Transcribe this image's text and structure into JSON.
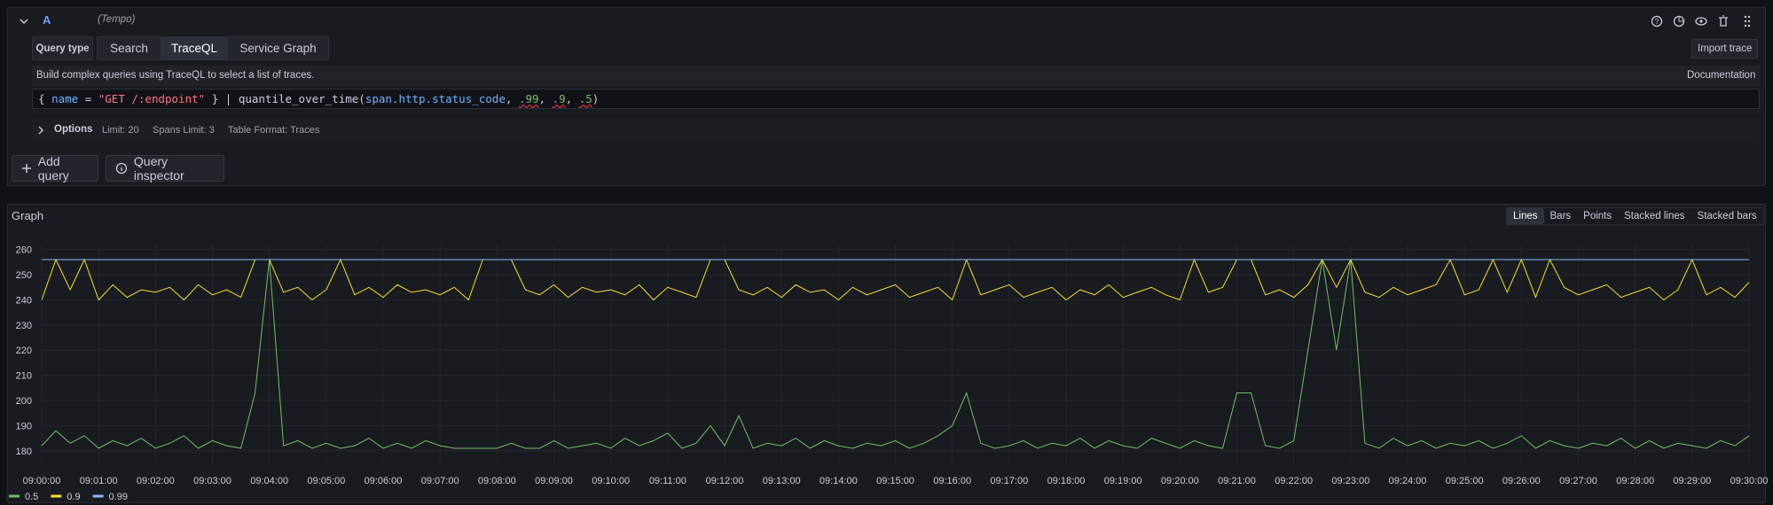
{
  "query_editor": {
    "ref_id": "A",
    "datasource": "(Tempo)",
    "query_type_label": "Query type",
    "tabs": [
      "Search",
      "TraceQL",
      "Service Graph"
    ],
    "import_button": "Import trace",
    "description": "Build complex queries using TraceQL to select a list of traces.",
    "documentation_link": "Documentation",
    "query_tokens": [
      "{ ",
      "name",
      " = ",
      "\"GET /:endpoint\"",
      " } | ",
      "quantile_over_time",
      "(",
      "span.http.status_code",
      ", ",
      ".99",
      ", ",
      ".9",
      ", ",
      ".5",
      ")"
    ],
    "options": {
      "label": "Options",
      "items": [
        "Limit: 20",
        "Spans Limit: 3",
        "Table Format: Traces"
      ]
    },
    "buttons": [
      "Add query",
      "Query inspector"
    ]
  },
  "panel": {
    "title": "Graph",
    "view_modes": [
      "Lines",
      "Bars",
      "Points",
      "Stacked lines",
      "Stacked bars"
    ]
  },
  "chart_data": {
    "type": "line",
    "grid": true,
    "x": [
      "09:00:00",
      "09:00:15",
      "09:00:30",
      "09:00:45",
      "09:01:00",
      "09:01:15",
      "09:01:30",
      "09:01:45",
      "09:02:00",
      "09:02:15",
      "09:02:30",
      "09:02:45",
      "09:03:00",
      "09:03:15",
      "09:03:30",
      "09:03:45",
      "09:04:00",
      "09:04:15",
      "09:04:30",
      "09:04:45",
      "09:05:00",
      "09:05:15",
      "09:05:30",
      "09:05:45",
      "09:06:00",
      "09:06:15",
      "09:06:30",
      "09:06:45",
      "09:07:00",
      "09:07:15",
      "09:07:30",
      "09:07:45",
      "09:08:00",
      "09:08:15",
      "09:08:30",
      "09:08:45",
      "09:09:00",
      "09:09:15",
      "09:09:30",
      "09:09:45",
      "09:10:00",
      "09:10:15",
      "09:10:30",
      "09:10:45",
      "09:11:00",
      "09:11:15",
      "09:11:30",
      "09:11:45",
      "09:12:00",
      "09:12:15",
      "09:12:30",
      "09:12:45",
      "09:13:00",
      "09:13:15",
      "09:13:30",
      "09:13:45",
      "09:14:00",
      "09:14:15",
      "09:14:30",
      "09:14:45",
      "09:15:00",
      "09:15:15",
      "09:15:30",
      "09:15:45",
      "09:16:00",
      "09:16:15",
      "09:16:30",
      "09:16:45",
      "09:17:00",
      "09:17:15",
      "09:17:30",
      "09:17:45",
      "09:18:00",
      "09:18:15",
      "09:18:30",
      "09:18:45",
      "09:19:00",
      "09:19:15",
      "09:19:30",
      "09:19:45",
      "09:20:00",
      "09:20:15",
      "09:20:30",
      "09:20:45",
      "09:21:00",
      "09:21:15",
      "09:21:30",
      "09:21:45",
      "09:22:00",
      "09:22:15",
      "09:22:30",
      "09:22:45",
      "09:23:00",
      "09:23:15",
      "09:23:30",
      "09:23:45",
      "09:24:00",
      "09:24:15",
      "09:24:30",
      "09:24:45",
      "09:25:00",
      "09:25:15",
      "09:25:30",
      "09:25:45",
      "09:26:00",
      "09:26:15",
      "09:26:30",
      "09:26:45",
      "09:27:00",
      "09:27:15",
      "09:27:30",
      "09:27:45",
      "09:28:00",
      "09:28:15",
      "09:28:30",
      "09:28:45",
      "09:29:00",
      "09:29:15",
      "09:29:30",
      "09:29:45",
      "09:30:00"
    ],
    "series": [
      {
        "name": "0.5",
        "color": "#73bf69",
        "values": [
          182,
          188,
          183,
          186,
          181,
          184,
          182,
          185,
          181,
          183,
          186,
          181,
          184,
          182,
          181,
          203,
          256,
          182,
          184,
          181,
          183,
          181,
          182,
          185,
          181,
          183,
          181,
          184,
          182,
          181,
          181,
          181,
          181,
          183,
          181,
          181,
          184,
          181,
          182,
          183,
          181,
          185,
          182,
          184,
          187,
          181,
          183,
          190,
          182,
          194,
          181,
          183,
          182,
          185,
          181,
          184,
          182,
          181,
          183,
          182,
          184,
          181,
          183,
          186,
          190,
          203,
          183,
          181,
          182,
          184,
          181,
          183,
          182,
          185,
          181,
          184,
          182,
          181,
          185,
          183,
          181,
          184,
          182,
          181,
          203,
          203,
          182,
          181,
          184,
          220,
          256,
          220,
          256,
          183,
          181,
          185,
          182,
          184,
          181,
          183,
          182,
          184,
          181,
          183,
          186,
          181,
          184,
          182,
          181,
          183,
          182,
          185,
          181,
          184,
          181,
          183,
          182,
          181,
          184,
          182,
          186
        ]
      },
      {
        "name": "0.9",
        "color": "#fade2a",
        "values": [
          240,
          256,
          244,
          256,
          240,
          246,
          241,
          244,
          243,
          245,
          240,
          246,
          242,
          244,
          241,
          256,
          256,
          243,
          245,
          240,
          244,
          256,
          242,
          245,
          241,
          246,
          243,
          244,
          242,
          245,
          240,
          256,
          256,
          256,
          244,
          242,
          246,
          241,
          245,
          243,
          244,
          242,
          246,
          240,
          245,
          243,
          241,
          256,
          256,
          244,
          242,
          245,
          241,
          246,
          243,
          244,
          240,
          245,
          242,
          244,
          246,
          241,
          243,
          245,
          240,
          256,
          242,
          244,
          246,
          241,
          243,
          245,
          240,
          244,
          242,
          246,
          241,
          243,
          245,
          242,
          240,
          256,
          243,
          245,
          256,
          256,
          242,
          244,
          241,
          246,
          256,
          245,
          256,
          243,
          241,
          245,
          242,
          244,
          246,
          256,
          242,
          244,
          256,
          243,
          256,
          241,
          256,
          245,
          242,
          244,
          246,
          241,
          243,
          245,
          240,
          244,
          256,
          242,
          245,
          241,
          247
        ]
      },
      {
        "name": "0.99",
        "color": "#8ab8ff",
        "values": [
          256,
          256,
          256,
          256,
          256,
          256,
          256,
          256,
          256,
          256,
          256,
          256,
          256,
          256,
          256,
          256,
          256,
          256,
          256,
          256,
          256,
          256,
          256,
          256,
          256,
          256,
          256,
          256,
          256,
          256,
          256,
          256,
          256,
          256,
          256,
          256,
          256,
          256,
          256,
          256,
          256,
          256,
          256,
          256,
          256,
          256,
          256,
          256,
          256,
          256,
          256,
          256,
          256,
          256,
          256,
          256,
          256,
          256,
          256,
          256,
          256,
          256,
          256,
          256,
          256,
          256,
          256,
          256,
          256,
          256,
          256,
          256,
          256,
          256,
          256,
          256,
          256,
          256,
          256,
          256,
          256,
          256,
          256,
          256,
          256,
          256,
          256,
          256,
          256,
          256,
          256,
          256,
          256,
          256,
          256,
          256,
          256,
          256,
          256,
          256,
          256,
          256,
          256,
          256,
          256,
          256,
          256,
          256,
          256,
          256,
          256,
          256,
          256,
          256,
          256,
          256,
          256,
          256,
          256,
          256,
          256
        ]
      }
    ],
    "xlim": [
      "09:00:00",
      "09:30:00"
    ],
    "xticks": [
      "09:00:00",
      "09:01:00",
      "09:02:00",
      "09:03:00",
      "09:04:00",
      "09:05:00",
      "09:06:00",
      "09:07:00",
      "09:08:00",
      "09:09:00",
      "09:10:00",
      "09:11:00",
      "09:12:00",
      "09:13:00",
      "09:14:00",
      "09:15:00",
      "09:16:00",
      "09:17:00",
      "09:18:00",
      "09:19:00",
      "09:20:00",
      "09:21:00",
      "09:22:00",
      "09:23:00",
      "09:24:00",
      "09:25:00",
      "09:26:00",
      "09:27:00",
      "09:28:00",
      "09:29:00",
      "09:30:00"
    ],
    "ylim": [
      175,
      262
    ],
    "yticks": [
      180,
      190,
      200,
      210,
      220,
      230,
      240,
      250,
      260
    ]
  }
}
